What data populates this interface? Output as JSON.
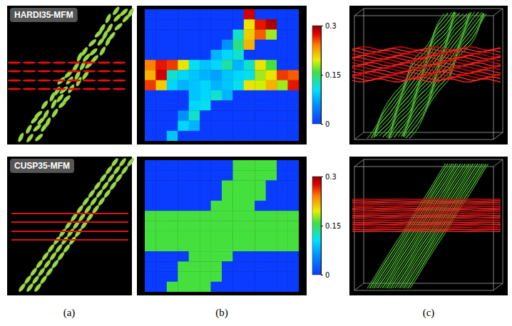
{
  "panel_labels": [
    "(a)",
    "(b)",
    "(c)"
  ],
  "chart_data": [
    {
      "type": "heatmap",
      "title": "HARDI35-MFM",
      "cells": [
        [
          0,
          0,
          0,
          0,
          0,
          0,
          0,
          0,
          0,
          0.28,
          0,
          0,
          0,
          0
        ],
        [
          0,
          0,
          0,
          0,
          0,
          0,
          0,
          0,
          0,
          0.2,
          0.27,
          0.29,
          0,
          0
        ],
        [
          0,
          0,
          0,
          0,
          0,
          0,
          0,
          0,
          0.12,
          0.21,
          0.25,
          0.18,
          0,
          0
        ],
        [
          0,
          0,
          0,
          0,
          0,
          0,
          0,
          0.06,
          0.14,
          0.22,
          0,
          0,
          0,
          0
        ],
        [
          0,
          0,
          0,
          0,
          0,
          0,
          0.08,
          0.1,
          0.12,
          0,
          0,
          0,
          0,
          0
        ],
        [
          0.24,
          0.27,
          0.26,
          0.2,
          0.11,
          0.09,
          0.1,
          0.13,
          0.08,
          0.12,
          0.2,
          0.16,
          0,
          0
        ],
        [
          0.22,
          0.28,
          0.12,
          0.1,
          0.09,
          0.08,
          0.07,
          0.09,
          0.1,
          0.11,
          0.18,
          0.2,
          0.26,
          0.25
        ],
        [
          0.26,
          0.21,
          0.1,
          0.08,
          0.09,
          0.1,
          0.08,
          0.09,
          0.11,
          0.2,
          0.19,
          0.22,
          0.18,
          0.27
        ],
        [
          0,
          0,
          0,
          0,
          0.09,
          0.1,
          0.12,
          0.08,
          0,
          0,
          0,
          0,
          0,
          0
        ],
        [
          0,
          0,
          0,
          0,
          0.1,
          0.11,
          0,
          0,
          0,
          0,
          0,
          0,
          0,
          0
        ],
        [
          0,
          0,
          0,
          0.06,
          0.12,
          0,
          0,
          0,
          0,
          0,
          0,
          0,
          0,
          0
        ],
        [
          0,
          0,
          0,
          0.1,
          0.08,
          0,
          0,
          0,
          0,
          0,
          0,
          0,
          0,
          0
        ],
        [
          0,
          0,
          0.09,
          0,
          0,
          0,
          0,
          0,
          0,
          0,
          0,
          0,
          0,
          0
        ]
      ],
      "colorbar_range": [
        0,
        0.3
      ],
      "colorbar_ticks": [
        0,
        0.15,
        0.3
      ]
    },
    {
      "type": "heatmap",
      "title": "CUSP35-MFM",
      "cells": [
        [
          0,
          0,
          0,
          0,
          0,
          0,
          0,
          0,
          0.16,
          0.16,
          0.16,
          0.16,
          0,
          0
        ],
        [
          0,
          0,
          0,
          0,
          0,
          0,
          0,
          0,
          0.16,
          0.16,
          0.16,
          0.16,
          0,
          0
        ],
        [
          0,
          0,
          0,
          0,
          0,
          0,
          0,
          0.16,
          0.16,
          0.16,
          0.16,
          0,
          0,
          0
        ],
        [
          0,
          0,
          0,
          0,
          0,
          0,
          0,
          0.16,
          0.16,
          0.16,
          0.16,
          0,
          0,
          0
        ],
        [
          0,
          0,
          0,
          0,
          0,
          0,
          0.16,
          0.16,
          0.16,
          0.16,
          0,
          0,
          0,
          0
        ],
        [
          0.16,
          0.16,
          0.16,
          0.16,
          0.16,
          0.16,
          0.16,
          0.16,
          0.16,
          0.16,
          0.16,
          0.16,
          0.16,
          0.16
        ],
        [
          0.16,
          0.16,
          0.16,
          0.16,
          0.16,
          0.16,
          0.16,
          0.16,
          0.16,
          0.16,
          0.16,
          0.16,
          0.16,
          0.16
        ],
        [
          0.16,
          0.16,
          0.16,
          0.16,
          0.16,
          0.16,
          0.16,
          0.16,
          0.16,
          0.16,
          0.16,
          0.16,
          0.16,
          0.16
        ],
        [
          0.16,
          0.16,
          0.16,
          0.16,
          0.16,
          0.16,
          0.16,
          0.16,
          0.16,
          0.16,
          0.16,
          0.16,
          0.16,
          0.16
        ],
        [
          0,
          0,
          0,
          0,
          0.16,
          0.16,
          0.16,
          0.16,
          0,
          0,
          0,
          0,
          0,
          0
        ],
        [
          0,
          0,
          0,
          0.16,
          0.16,
          0.16,
          0.16,
          0,
          0,
          0,
          0,
          0,
          0,
          0
        ],
        [
          0,
          0,
          0,
          0.16,
          0.16,
          0.16,
          0.16,
          0,
          0,
          0,
          0,
          0,
          0,
          0
        ],
        [
          0,
          0,
          0.16,
          0.16,
          0.16,
          0.16,
          0,
          0,
          0,
          0,
          0,
          0,
          0,
          0
        ]
      ],
      "colorbar_range": [
        0,
        0.3
      ],
      "colorbar_ticks": [
        0,
        0.15,
        0.3
      ]
    }
  ]
}
